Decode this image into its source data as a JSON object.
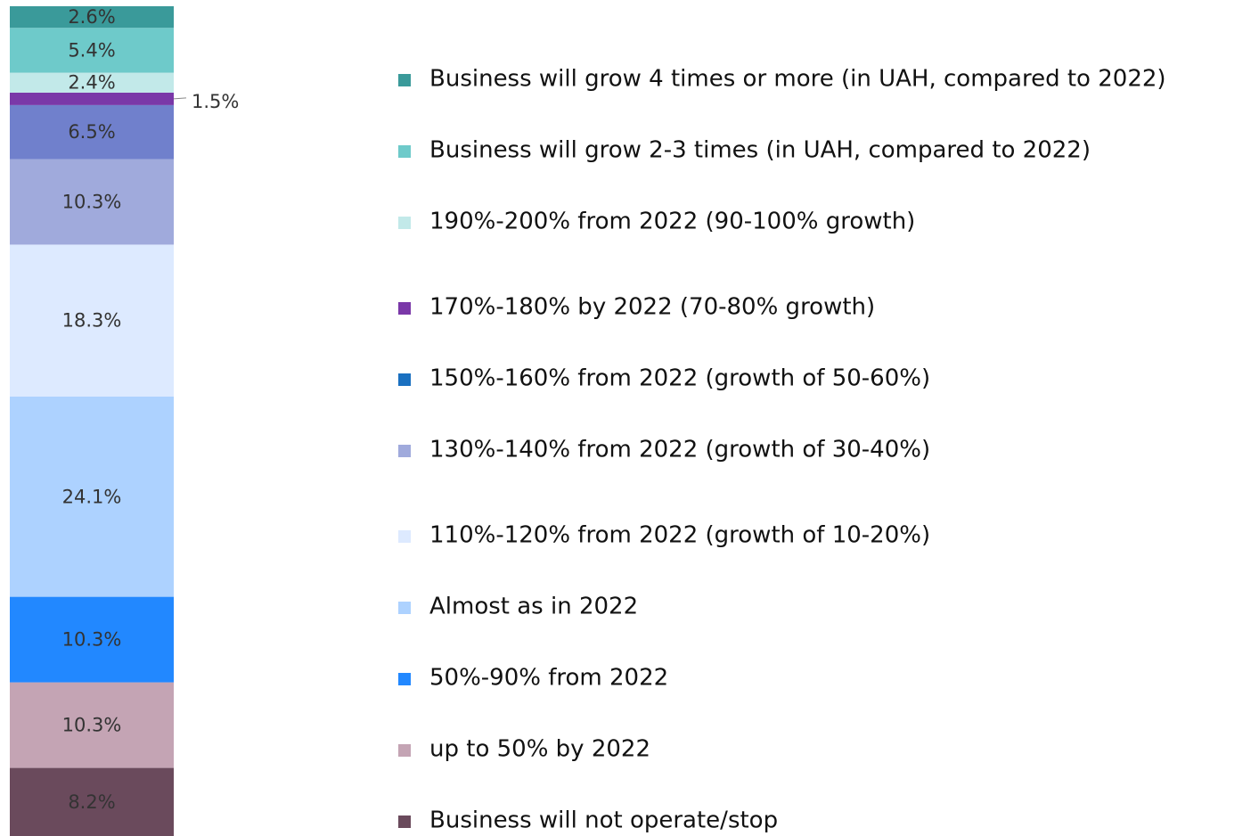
{
  "chart_data": {
    "type": "bar",
    "stacked": true,
    "categories": [
      null
    ],
    "series": [
      {
        "name": "Business will grow 4 times or more (in UAH, compared to 2022)",
        "color": "#3a9a9a",
        "values": [
          2.6
        ],
        "value_labels": [
          "2.6%"
        ]
      },
      {
        "name": "Business will grow 2-3 times (in UAH, compared to 2022)",
        "color": "#6ecaca",
        "values": [
          5.4
        ],
        "value_labels": [
          "5.4%"
        ]
      },
      {
        "name": "190%-200% from 2022 (90-100% growth)",
        "color": "#c2e9e9",
        "values": [
          2.4
        ],
        "value_labels": [
          "2.4%"
        ]
      },
      {
        "name": "170%-180% by 2022 (70-80% growth)",
        "color": "#7a38a8",
        "values": [
          1.5
        ],
        "value_labels": [
          "1.5%"
        ]
      },
      {
        "name": "150%-160% from 2022 (growth of 50-60%)",
        "color": "#7080cc",
        "legend_color": "#1a70c0",
        "values": [
          6.5
        ],
        "value_labels": [
          "6.5%"
        ]
      },
      {
        "name": "130%-140% from 2022 (growth of 30-40%)",
        "color": "#a0aadc",
        "values": [
          10.3
        ],
        "value_labels": [
          "10.3%"
        ]
      },
      {
        "name": "110%-120% from 2022 (growth of 10-20%)",
        "color": "#ddeaff",
        "values": [
          18.3
        ],
        "value_labels": [
          "18.3%"
        ]
      },
      {
        "name": "Almost as in 2022",
        "color": "#add2ff",
        "values": [
          24.1
        ],
        "value_labels": [
          "24.1%"
        ]
      },
      {
        "name": "50%-90% from 2022",
        "color": "#2288ff",
        "values": [
          10.3
        ],
        "value_labels": [
          "10.3%"
        ]
      },
      {
        "name": "up to 50% by 2022",
        "color": "#c4a4b4",
        "values": [
          10.3
        ],
        "value_labels": [
          "10.3%"
        ]
      },
      {
        "name": "Business will not operate/stop",
        "color": "#6a4a5c",
        "values": [
          8.2
        ],
        "value_labels": [
          "8.2%"
        ]
      }
    ]
  }
}
